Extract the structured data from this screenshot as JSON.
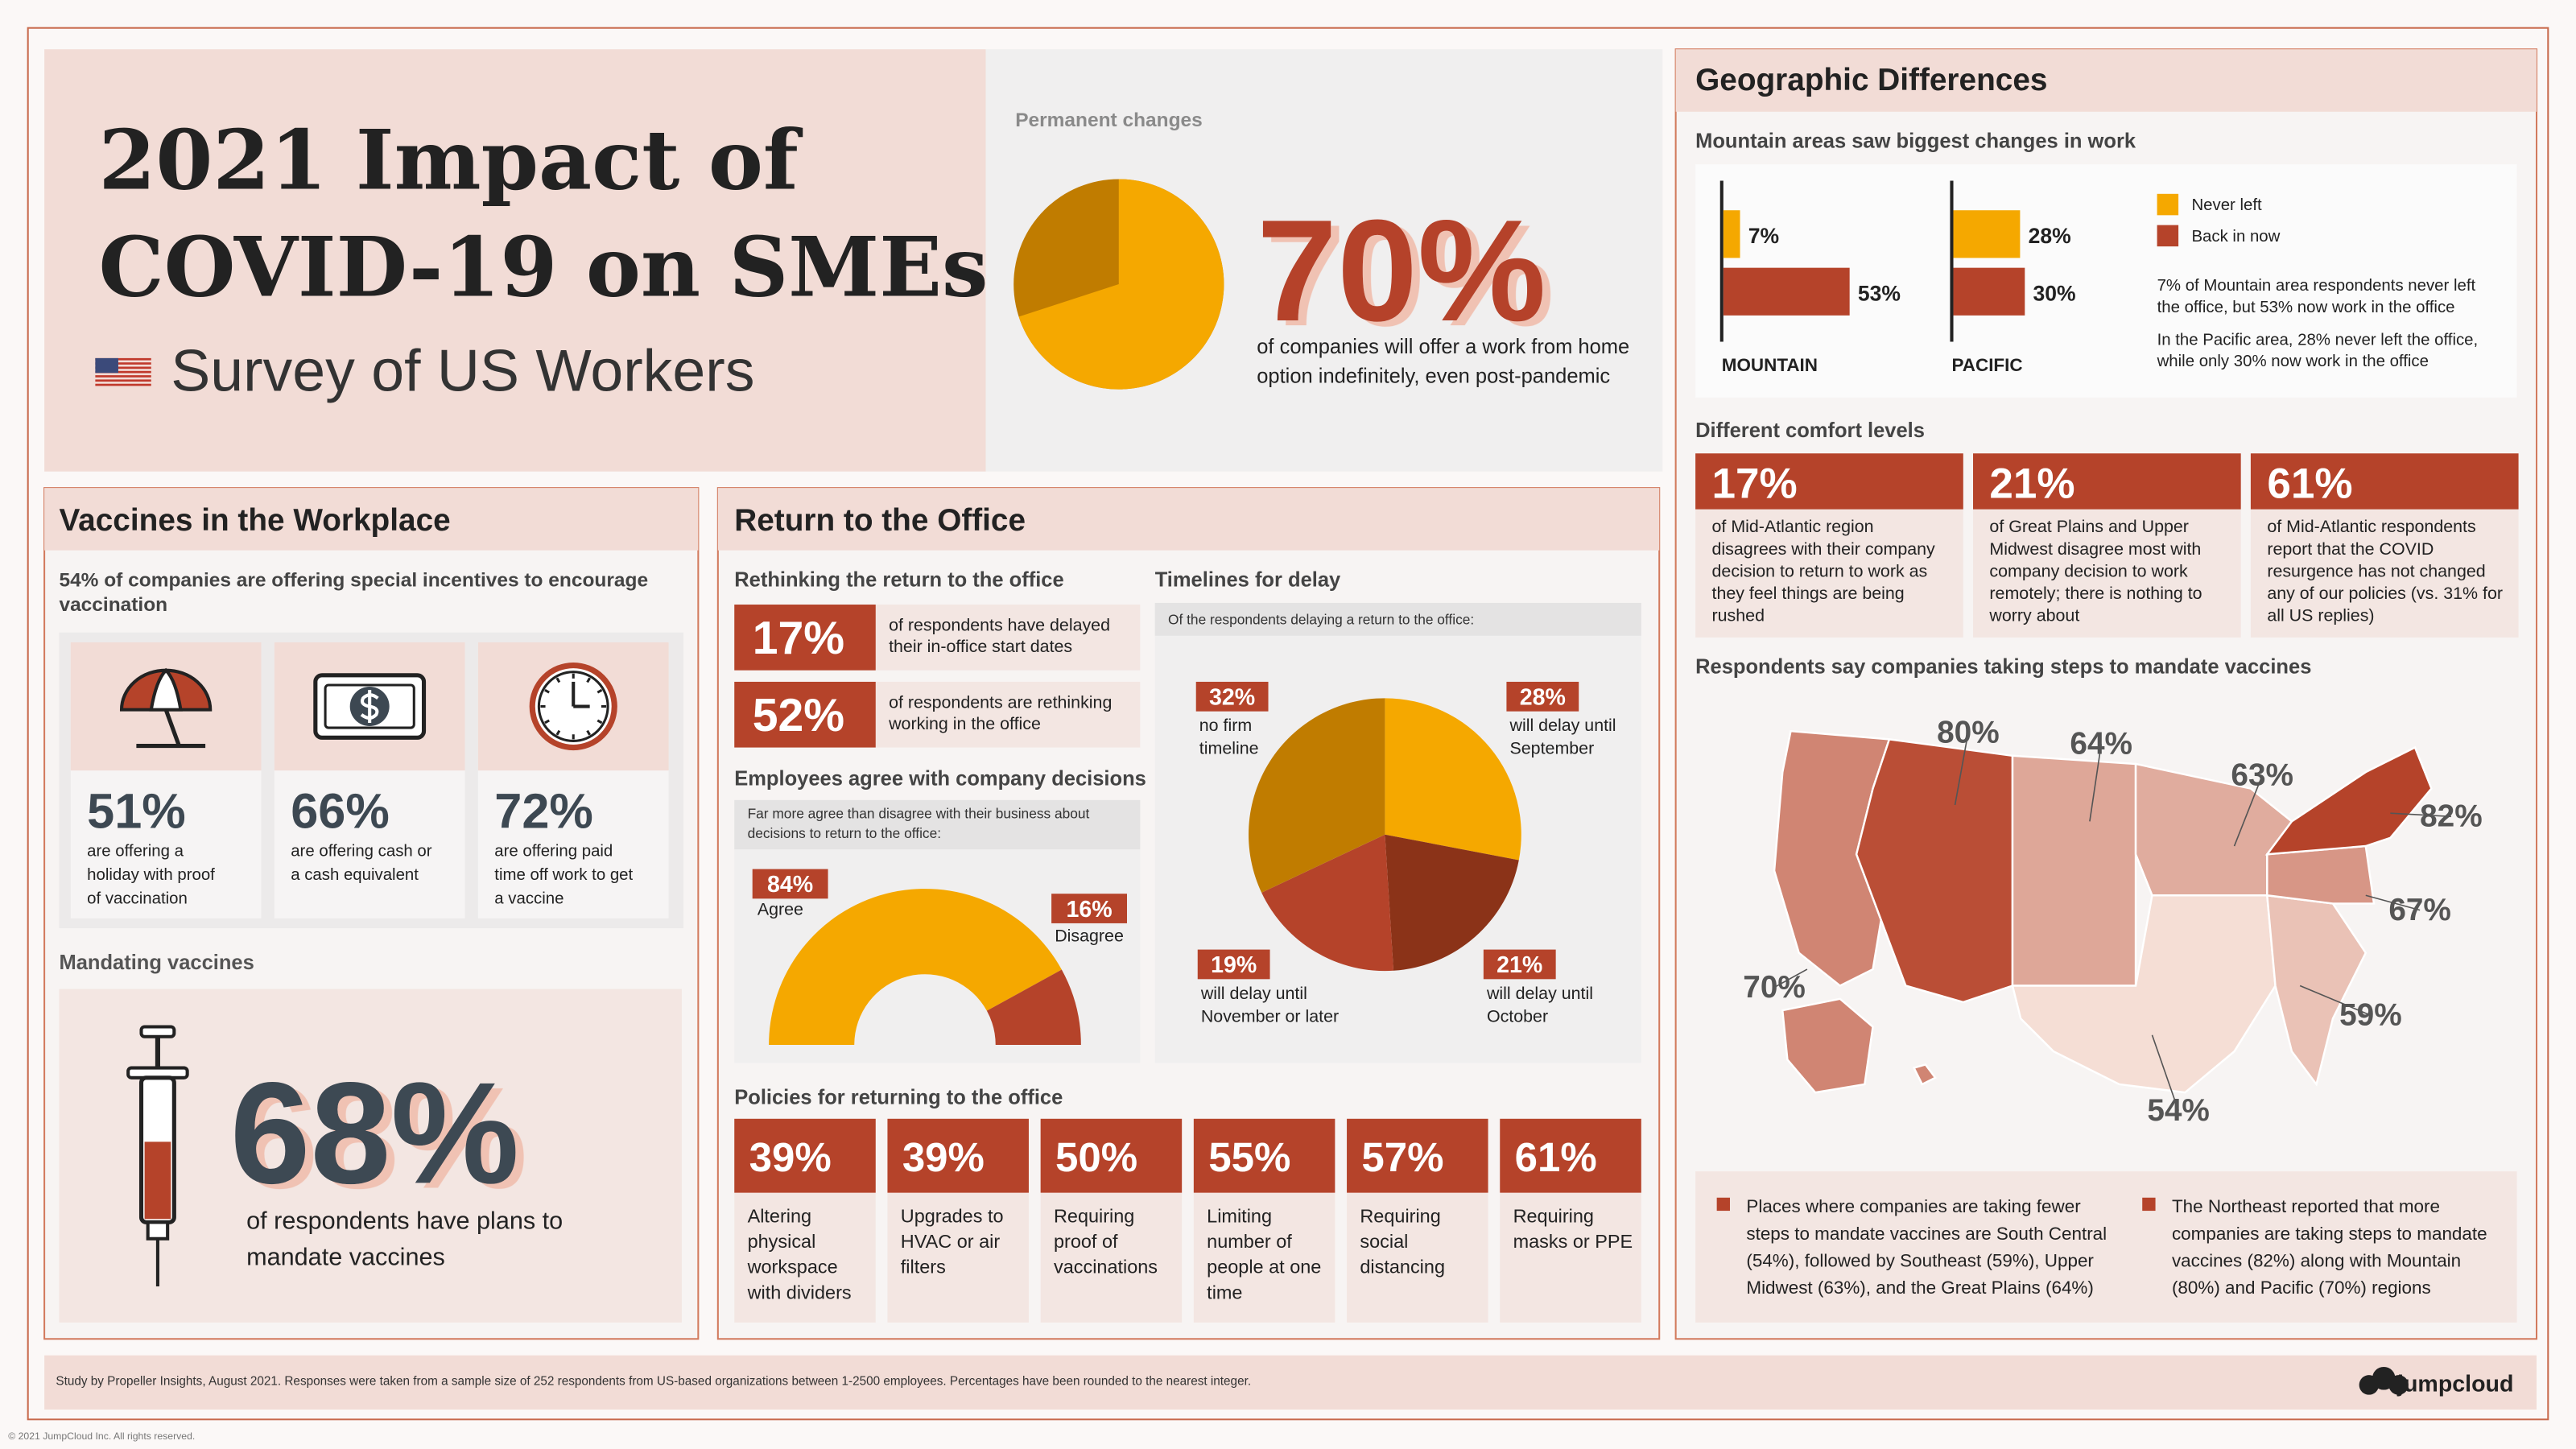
{
  "header": {
    "title_lines": [
      "2021 Impact of",
      "COVID-19 on SMEs"
    ],
    "subtitle": "Survey of US Workers"
  },
  "permanent": {
    "label": "Permanent changes",
    "value": 70,
    "value_label": "70%",
    "text": [
      "of companies will offer a work from home",
      "option indefinitely, even post-pandemic"
    ]
  },
  "vaccines": {
    "title": "Vaccines in the Workplace",
    "intro": [
      "54% of companies are offering special incentives to encourage",
      "vaccination"
    ],
    "incentives": [
      {
        "value": "51%",
        "text": [
          "are offering a",
          "holiday with proof",
          "of vaccination"
        ]
      },
      {
        "value": "66%",
        "text": [
          "are offering cash or",
          "a cash equivalent"
        ]
      },
      {
        "value": "72%",
        "text": [
          "are offering paid",
          "time off work to get",
          "a vaccine"
        ]
      }
    ],
    "mandating_label": "Mandating vaccines",
    "mandating_value": "68%",
    "mandating_text": [
      "of respondents have plans to",
      "mandate vaccines"
    ]
  },
  "return": {
    "title": "Return to the Office",
    "rethinking_label": "Rethinking the return to the office",
    "rethinking": [
      {
        "value": "17%",
        "text": [
          "of respondents have delayed",
          "their in-office start dates"
        ]
      },
      {
        "value": "52%",
        "text": [
          "of respondents are rethinking",
          "working in the office"
        ]
      }
    ],
    "agree_label": "Employees agree with company decisions",
    "agree_note": [
      "Far more agree than disagree with their business about",
      "decisions to return to the office:"
    ],
    "agree_chart": {
      "type": "donut",
      "categories": [
        "Agree",
        "Disagree"
      ],
      "values": [
        84,
        16
      ],
      "value_labels": [
        "84%",
        "16%"
      ],
      "colors": [
        "#f5a800",
        "#b5432a"
      ]
    },
    "timelines_label": "Timelines for delay",
    "timelines_note": "Of the respondents delaying a return to the office:",
    "timelines_chart": {
      "type": "pie",
      "categories": [
        [
          "will delay until",
          "September"
        ],
        [
          "will delay until",
          "October"
        ],
        [
          "will delay until",
          "November or later"
        ],
        [
          "no firm",
          "timeline"
        ]
      ],
      "values": [
        28,
        21,
        19,
        32
      ],
      "value_labels": [
        "28%",
        "21%",
        "19%",
        "32%"
      ],
      "colors": [
        "#f5a800",
        "#8b3318",
        "#b5432a",
        "#c07c00"
      ]
    },
    "policies_label": "Policies for returning to the office",
    "policies": [
      {
        "value": "39%",
        "text": [
          "Altering",
          "physical",
          "workspace",
          "with dividers"
        ]
      },
      {
        "value": "39%",
        "text": [
          "Upgrades to",
          "HVAC or air",
          "filters"
        ]
      },
      {
        "value": "50%",
        "text": [
          "Requiring",
          "proof of",
          "vaccinations"
        ]
      },
      {
        "value": "55%",
        "text": [
          "Limiting",
          "number of",
          "people at one",
          "time"
        ]
      },
      {
        "value": "57%",
        "text": [
          "Requiring",
          "social",
          "distancing"
        ]
      },
      {
        "value": "61%",
        "text": [
          "Requiring",
          "masks or PPE"
        ]
      }
    ]
  },
  "geo": {
    "title": "Geographic Differences",
    "work_label": "Mountain areas saw biggest changes in work",
    "work_chart": {
      "type": "bar",
      "categories": [
        "MOUNTAIN",
        "PACIFIC"
      ],
      "series": [
        {
          "name": "Never left",
          "color": "#f5a800",
          "values": [
            7,
            28
          ],
          "value_labels": [
            "7%",
            "28%"
          ]
        },
        {
          "name": "Back in now",
          "color": "#b5432a",
          "values": [
            53,
            30
          ],
          "value_labels": [
            "53%",
            "30%"
          ]
        }
      ]
    },
    "work_notes": [
      [
        "7% of Mountain area respondents never left",
        "the office, but 53% now work in the office"
      ],
      [
        "In the Pacific area, 28% never left the office,",
        "while only 30% now work in the office"
      ]
    ],
    "comfort_label": "Different comfort levels",
    "comfort": [
      {
        "value": "17%",
        "text": [
          "of Mid-Atlantic region",
          "disagrees with their company",
          "decision to return to work as",
          "they feel things are being",
          "rushed"
        ]
      },
      {
        "value": "21%",
        "text": [
          "of Great Plains and Upper",
          "Midwest disagree most with",
          "company decision to work",
          "remotely; there is nothing to",
          "worry about"
        ]
      },
      {
        "value": "61%",
        "text": [
          "of Mid-Atlantic respondents",
          "report that the COVID",
          "resurgence has not changed",
          "any of our  policies (vs. 31% for",
          "all US replies)"
        ]
      }
    ],
    "map_label": "Respondents say companies taking steps to mandate vaccines",
    "map": {
      "type": "choropleth",
      "values": [
        70,
        80,
        64,
        63,
        54,
        59,
        67,
        82
      ],
      "value_labels": [
        "70%",
        "80%",
        "64%",
        "63%",
        "54%",
        "59%",
        "67%",
        "82%"
      ]
    },
    "map_notes": [
      [
        "Places where companies are taking fewer",
        "steps to mandate vaccines are South Central",
        "(54%), followed by Southeast (59%), Upper",
        "Midwest (63%), and the Great Plains (64%)"
      ],
      [
        "The Northeast reported that more",
        "companies are taking steps to mandate",
        "vaccines (82%) along with Mountain",
        "(80%) and Pacific (70%) regions"
      ]
    ]
  },
  "footer": {
    "note": "Study by Propeller Insights, August 2021. Responses were taken from a sample size of 252 respondents from US-based organizations between 1-2500 employees. Percentages have been rounded to the nearest integer.",
    "brand": "jumpcloud",
    "copyright": "© 2021 JumpCloud Inc. All rights reserved."
  }
}
